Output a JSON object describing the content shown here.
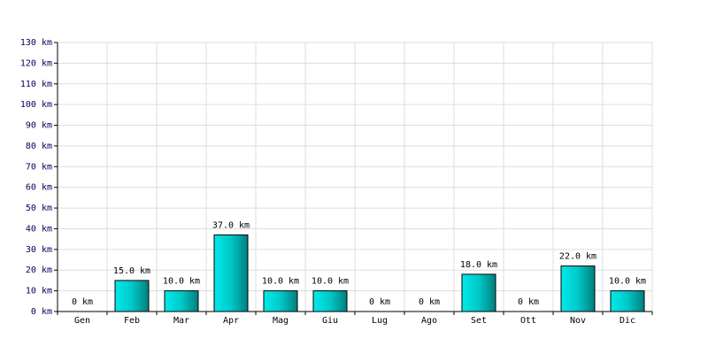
{
  "chart_data": {
    "type": "bar",
    "categories": [
      "Gen",
      "Feb",
      "Mar",
      "Apr",
      "Mag",
      "Giu",
      "Lug",
      "Ago",
      "Set",
      "Ott",
      "Nov",
      "Dic"
    ],
    "values": [
      0,
      15,
      10,
      37,
      10,
      10,
      0,
      0,
      18,
      0,
      22,
      10
    ],
    "value_labels": [
      "0 km",
      "15.0 km",
      "10.0 km",
      "37.0 km",
      "10.0 km",
      "10.0 km",
      "0 km",
      "0 km",
      "18.0 km",
      "0 km",
      "22.0 km",
      "10.0 km"
    ],
    "color": "#00c8c8",
    "ylim": [
      0,
      130
    ],
    "yticks": [
      {
        "value": 0,
        "label": "0 km"
      },
      {
        "value": 10,
        "label": "10 km"
      },
      {
        "value": 20,
        "label": "20 km"
      },
      {
        "value": 30,
        "label": "30 km"
      },
      {
        "value": 40,
        "label": "40 km"
      },
      {
        "value": 50,
        "label": "50 km"
      },
      {
        "value": 60,
        "label": "60 km"
      },
      {
        "value": 70,
        "label": "70 km"
      },
      {
        "value": 80,
        "label": "80 km"
      },
      {
        "value": 90,
        "label": "90 km"
      },
      {
        "value": 100,
        "label": "100 km"
      },
      {
        "value": 110,
        "label": "110 km"
      },
      {
        "value": 120,
        "label": "120 km"
      },
      {
        "value": 130,
        "label": "130 km"
      }
    ],
    "grid": true
  }
}
